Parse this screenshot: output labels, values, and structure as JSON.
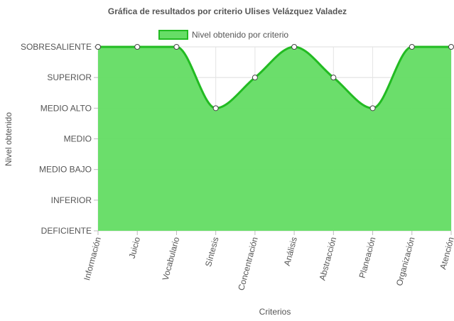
{
  "chart_data": {
    "type": "area",
    "title": "Gráfica de resultados por criterio Ulises Velázquez Valadez",
    "xlabel": "Criterios",
    "ylabel": "Nivel obtenido",
    "categories": [
      "Información",
      "Juicio",
      "Vocabulario",
      "Síntesis",
      "Concentración",
      "Análisis",
      "Abstracción",
      "Planeación",
      "Organización",
      "Atención"
    ],
    "y_levels": [
      "DEFICIENTE",
      "INFERIOR",
      "MEDIO BAJO",
      "MEDIO",
      "MEDIO ALTO",
      "SUPERIOR",
      "SOBRESALIENTE"
    ],
    "series": [
      {
        "name": "Nivel obtenido por criterio",
        "values": [
          "SOBRESALIENTE",
          "SOBRESALIENTE",
          "SOBRESALIENTE",
          "MEDIO ALTO",
          "SUPERIOR",
          "SOBRESALIENTE",
          "SUPERIOR",
          "MEDIO ALTO",
          "SOBRESALIENTE",
          "SOBRESALIENTE"
        ],
        "fill_color": "#66dd66",
        "line_color": "#22bb22"
      }
    ],
    "grid": true,
    "legend_position": "top"
  }
}
